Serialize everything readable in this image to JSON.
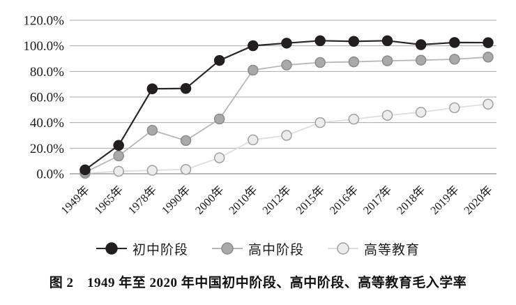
{
  "figure": {
    "caption": "图 2　1949 年至 2020 年中国初中阶段、高中阶段、高等教育毛入学率"
  },
  "chart_data": {
    "type": "line",
    "title": "",
    "xlabel": "",
    "ylabel": "",
    "categories": [
      "1949年",
      "1965年",
      "1978年",
      "1990年",
      "2000年",
      "2010年",
      "2012年",
      "2015年",
      "2016年",
      "2017年",
      "2018年",
      "2019年",
      "2020年"
    ],
    "series": [
      {
        "name": "初中阶段",
        "values": [
          3.1,
          22.2,
          66.4,
          66.7,
          88.6,
          100.1,
          102.1,
          104.0,
          103.5,
          104.0,
          100.9,
          102.6,
          102.5
        ],
        "point_fill": "#231f20",
        "point_stroke": "#231f20",
        "line_color": "#2b2728"
      },
      {
        "name": "高中阶段",
        "values": [
          1.1,
          14.0,
          34.0,
          26.0,
          42.8,
          81.0,
          85.0,
          87.0,
          87.5,
          88.3,
          88.8,
          89.5,
          91.2
        ],
        "point_fill": "#a9a9a9",
        "point_stroke": "#8b8b8b",
        "line_color": "#b7b7b7"
      },
      {
        "name": "高等教育",
        "values": [
          0.3,
          2.0,
          2.7,
          3.4,
          12.5,
          26.5,
          30.0,
          40.0,
          42.7,
          45.7,
          48.1,
          51.6,
          54.4
        ],
        "point_fill": "#ececec",
        "point_stroke": "#a0a0a0",
        "line_color": "#dedede"
      }
    ],
    "y_ticks": [
      "0.0%",
      "20.0%",
      "40.0%",
      "60.0%",
      "80.0%",
      "100.0%",
      "120.0%"
    ],
    "ylim": [
      0,
      120
    ],
    "y_step": 20,
    "grid": true,
    "legend_position": "bottom",
    "colors": {
      "gridline": "#a9a9a9",
      "axis_line": "#8c8c8c",
      "tick_text": "#1b1b1b"
    }
  }
}
